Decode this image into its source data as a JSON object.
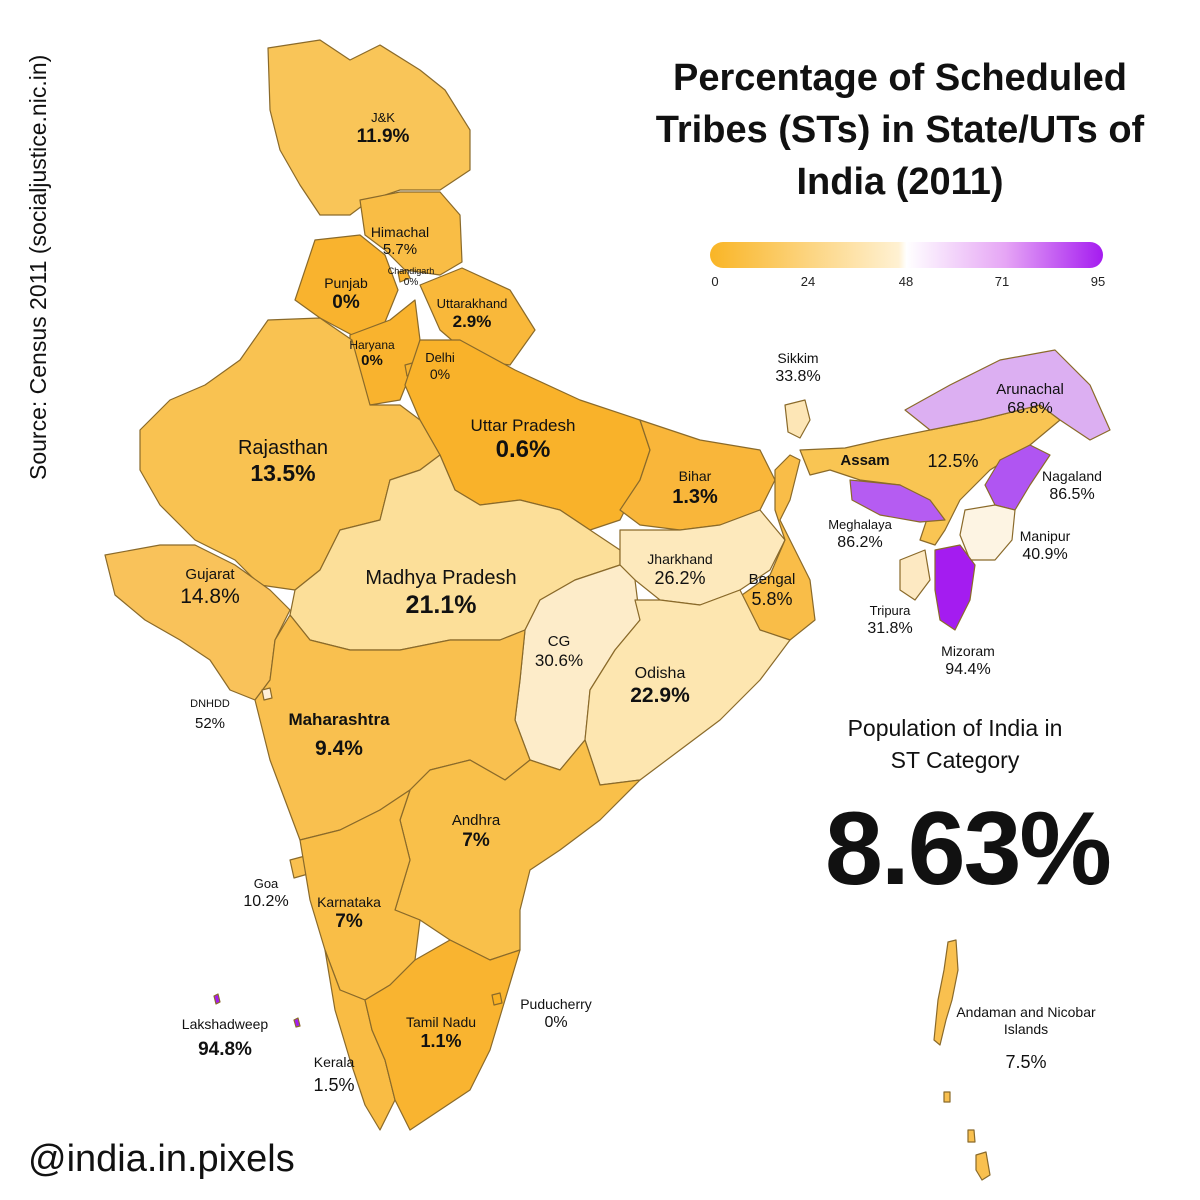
{
  "title": "Percentage of Scheduled Tribes (STs) in State/UTs of India (2011)",
  "source": "Source: Census 2011 (socialjustice.nic.in)",
  "handle": "@india.in.pixels",
  "legend": {
    "ticks": [
      "0",
      "24",
      "48",
      "71",
      "95"
    ],
    "colors": {
      "low": "#f9b526",
      "mid": "#ffffff",
      "high": "#a51cf0"
    }
  },
  "summary": {
    "caption": "Population of India in ST Category",
    "value": "8.63%"
  },
  "regions": {
    "jk": {
      "name": "J&K",
      "value": "11.9%"
    },
    "himachal": {
      "name": "Himachal",
      "value": "5.7%"
    },
    "chandigarh": {
      "name": "Chandigarh",
      "value": "0%"
    },
    "punjab": {
      "name": "Punjab",
      "value": "0%"
    },
    "uttarakhand": {
      "name": "Uttarakhand",
      "value": "2.9%"
    },
    "haryana": {
      "name": "Haryana",
      "value": "0%"
    },
    "delhi": {
      "name": "Delhi",
      "value": "0%"
    },
    "rajasthan": {
      "name": "Rajasthan",
      "value": "13.5%"
    },
    "uttar_pradesh": {
      "name": "Uttar Pradesh",
      "value": "0.6%"
    },
    "bihar": {
      "name": "Bihar",
      "value": "1.3%"
    },
    "sikkim": {
      "name": "Sikkim",
      "value": "33.8%"
    },
    "arunachal": {
      "name": "Arunachal",
      "value": "68.8%"
    },
    "assam": {
      "name": "Assam",
      "value": "12.5%"
    },
    "nagaland": {
      "name": "Nagaland",
      "value": "86.5%"
    },
    "meghalaya": {
      "name": "Meghalaya",
      "value": "86.2%"
    },
    "manipur": {
      "name": "Manipur",
      "value": "40.9%"
    },
    "tripura": {
      "name": "Tripura",
      "value": "31.8%"
    },
    "mizoram": {
      "name": "Mizoram",
      "value": "94.4%"
    },
    "gujarat": {
      "name": "Gujarat",
      "value": "14.8%"
    },
    "madhya_pradesh": {
      "name": "Madhya Pradesh",
      "value": "21.1%"
    },
    "jharkhand": {
      "name": "Jharkhand",
      "value": "26.2%"
    },
    "bengal": {
      "name": "Bengal",
      "value": "5.8%"
    },
    "cg": {
      "name": "CG",
      "value": "30.6%"
    },
    "odisha": {
      "name": "Odisha",
      "value": "22.9%"
    },
    "dnhdd": {
      "name": "DNHDD",
      "value": "52%"
    },
    "maharashtra": {
      "name": "Maharashtra",
      "value": "9.4%"
    },
    "andhra": {
      "name": "Andhra",
      "value": "7%"
    },
    "goa": {
      "name": "Goa",
      "value": "10.2%"
    },
    "karnataka": {
      "name": "Karnataka",
      "value": "7%"
    },
    "tamil_nadu": {
      "name": "Tamil Nadu",
      "value": "1.1%"
    },
    "puducherry": {
      "name": "Puducherry",
      "value": "0%"
    },
    "lakshadweep": {
      "name": "Lakshadweep",
      "value": "94.8%"
    },
    "kerala": {
      "name": "Kerala",
      "value": "1.5%"
    },
    "andaman": {
      "name": "Andaman and Nicobar Islands",
      "value": "7.5%"
    }
  }
}
